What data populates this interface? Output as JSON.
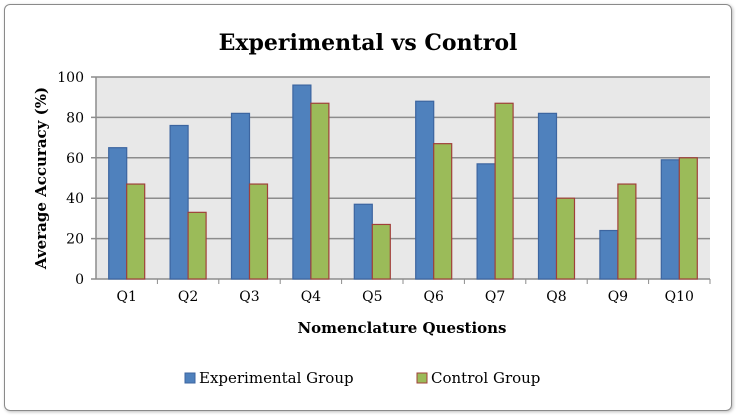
{
  "chart_data": {
    "type": "bar",
    "title": "Experimental vs Control",
    "xlabel": "Nomenclature Questions",
    "ylabel": "Average Accuracy (%)",
    "ylim": [
      0,
      100
    ],
    "yticks": [
      0,
      20,
      40,
      60,
      80,
      100
    ],
    "grid": true,
    "legend_position": "bottom",
    "categories": [
      "Q1",
      "Q2",
      "Q3",
      "Q4",
      "Q5",
      "Q6",
      "Q7",
      "Q8",
      "Q9",
      "Q10"
    ],
    "series": [
      {
        "name": "Experimental Group",
        "color": "#4f81bd",
        "values": [
          65,
          76,
          82,
          96,
          37,
          88,
          57,
          82,
          24,
          59
        ]
      },
      {
        "name": "Control Group",
        "color": "#9bbb59",
        "values": [
          47,
          33,
          47,
          87,
          27,
          67,
          87,
          40,
          47,
          60
        ]
      }
    ]
  }
}
